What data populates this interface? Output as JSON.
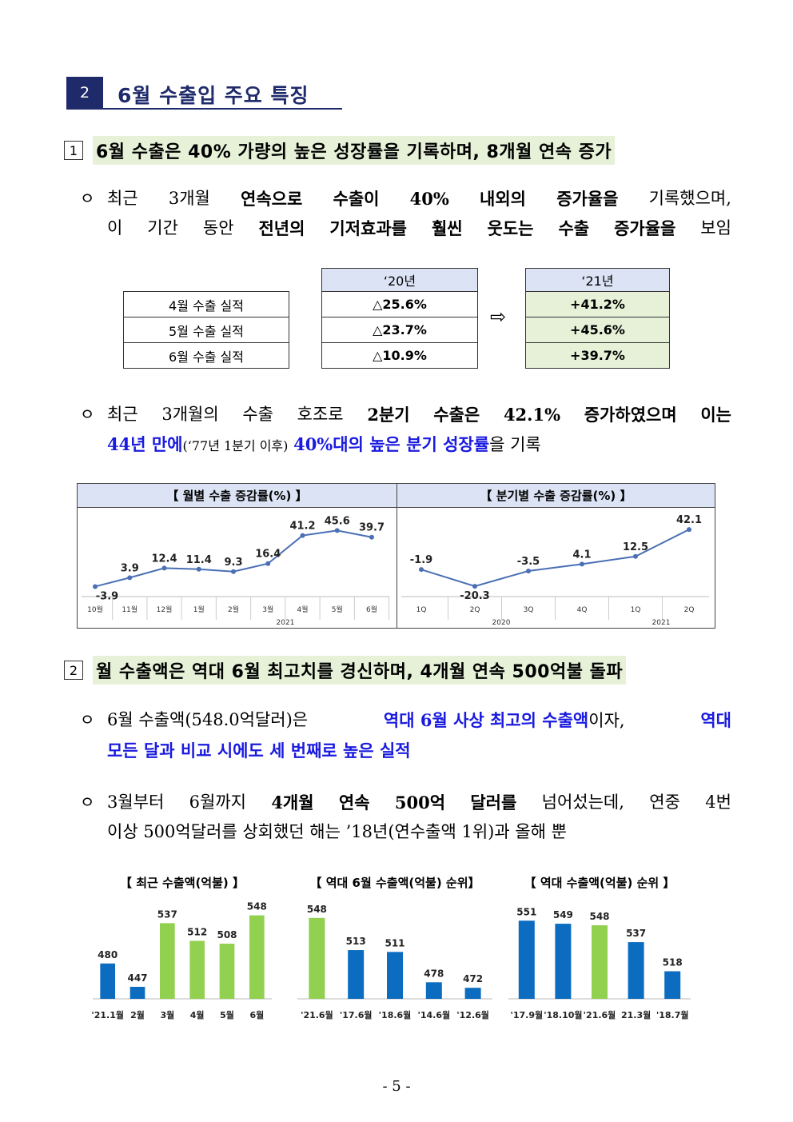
{
  "section": {
    "number": "2",
    "title": "6월 수출입 주요 특징"
  },
  "sub1": {
    "num": "1",
    "text": "6월 수출은 40% 가량의 높은 성장률을 기록하며, 8개월 연속 증가"
  },
  "p1": {
    "bullet": "ㅇ",
    "line1": [
      "최근",
      "3개월",
      "연속으로",
      "수출이",
      "40%",
      "내외의",
      "증가율을",
      "기록했으며,"
    ],
    "line2": [
      "이",
      "기간",
      "동안",
      "전년의",
      "기저효과를",
      "훨씬",
      "웃도는",
      "수출",
      "증가율을",
      "보임"
    ]
  },
  "table": {
    "rows": [
      "4월 수출 실적",
      "5월 수출 실적",
      "6월 수출 실적"
    ],
    "col2020": {
      "header": "‘20년",
      "values": [
        "△25.6%",
        "△23.7%",
        "△10.9%"
      ]
    },
    "col2021": {
      "header": "‘21년",
      "values": [
        "+41.2%",
        "+45.6%",
        "+39.7%"
      ]
    },
    "arrow": "⇨"
  },
  "p2": {
    "bullet": "ㅇ",
    "line1": [
      "최근",
      "3개월의",
      "수출",
      "호조로",
      "2분기",
      "수출은",
      "42.1%",
      "증가하였으며",
      "이는"
    ],
    "line2_blue1": "44년 만에",
    "line2_paren": "(‘77년 1분기 이후)",
    "line2_blue2": "40%대의 높은 분기 성장률",
    "line2_tail": "을 기록"
  },
  "chart_data": [
    {
      "type": "line",
      "title": "【 월별 수출 증감률(%) 】",
      "categories": [
        "10월",
        "11월",
        "12월",
        "1월",
        "2월",
        "3월",
        "4월",
        "5월",
        "6월"
      ],
      "values": [
        -3.9,
        3.9,
        12.4,
        11.4,
        9.3,
        16.4,
        41.2,
        45.6,
        39.7
      ],
      "group_label": "2021",
      "color": "#4a6fb5"
    },
    {
      "type": "line",
      "title": "【 분기별 수출 증감률(%) 】",
      "categories": [
        "1Q",
        "2Q",
        "3Q",
        "4Q",
        "1Q",
        "2Q"
      ],
      "values": [
        -1.9,
        -20.3,
        -3.5,
        4.1,
        12.5,
        42.1
      ],
      "group_labels": [
        "2020",
        "2021"
      ],
      "color": "#4a6fb5"
    },
    {
      "type": "bar",
      "title": "【 최근 수출액(억불) 】",
      "categories": [
        "'21.1월",
        "2월",
        "3월",
        "4월",
        "5월",
        "6월"
      ],
      "values": [
        480,
        447,
        537,
        512,
        508,
        548
      ],
      "colors": [
        "#0b6cc0",
        "#0b6cc0",
        "#92d050",
        "#92d050",
        "#92d050",
        "#92d050"
      ],
      "ylim": [
        430,
        560
      ]
    },
    {
      "type": "bar",
      "title": "【 역대 6월 수출액(억불) 순위】",
      "categories": [
        "'21.6월",
        "'17.6월",
        "'18.6월",
        "'14.6월",
        "'12.6월"
      ],
      "values": [
        548,
        513,
        511,
        478,
        472
      ],
      "colors": [
        "#92d050",
        "#0b6cc0",
        "#0b6cc0",
        "#0b6cc0",
        "#0b6cc0"
      ],
      "ylim": [
        460,
        560
      ]
    },
    {
      "type": "bar",
      "title": "【 역대 수출액(억불) 순위 】",
      "categories": [
        "'17.9월",
        "'18.10월",
        "'21.6월",
        "21.3월",
        "'18.7월"
      ],
      "values": [
        551,
        549,
        548,
        537,
        518
      ],
      "colors": [
        "#0b6cc0",
        "#0b6cc0",
        "#92d050",
        "#0b6cc0",
        "#0b6cc0"
      ],
      "ylim": [
        500,
        560
      ]
    }
  ],
  "sub2": {
    "num": "2",
    "text": "월 수출액은 역대 6월 최고치를 경신하며, 4개월 연속 500억불 돌파"
  },
  "p3": {
    "bullet": "ㅇ",
    "line1_a": "6월 수출액(548.0억달러)은",
    "line1_blue": "역대 6월 사상 최고의 수출액",
    "line1_b": "이자,",
    "line1_blue2": "역대",
    "line2_blue": "모든 달과 비교 시에도 세 번째로 높은 실적"
  },
  "p4": {
    "bullet": "ㅇ",
    "line1": [
      "3월부터",
      "6월까지",
      "4개월",
      "연속",
      "500억",
      "달러를",
      "넘어섰는데,",
      "연중",
      "4번"
    ],
    "line2": "이상 500억달러를 상회했던 해는 ’18년(연수출액 1위)과 올해 뿐"
  },
  "page": "- 5 -"
}
